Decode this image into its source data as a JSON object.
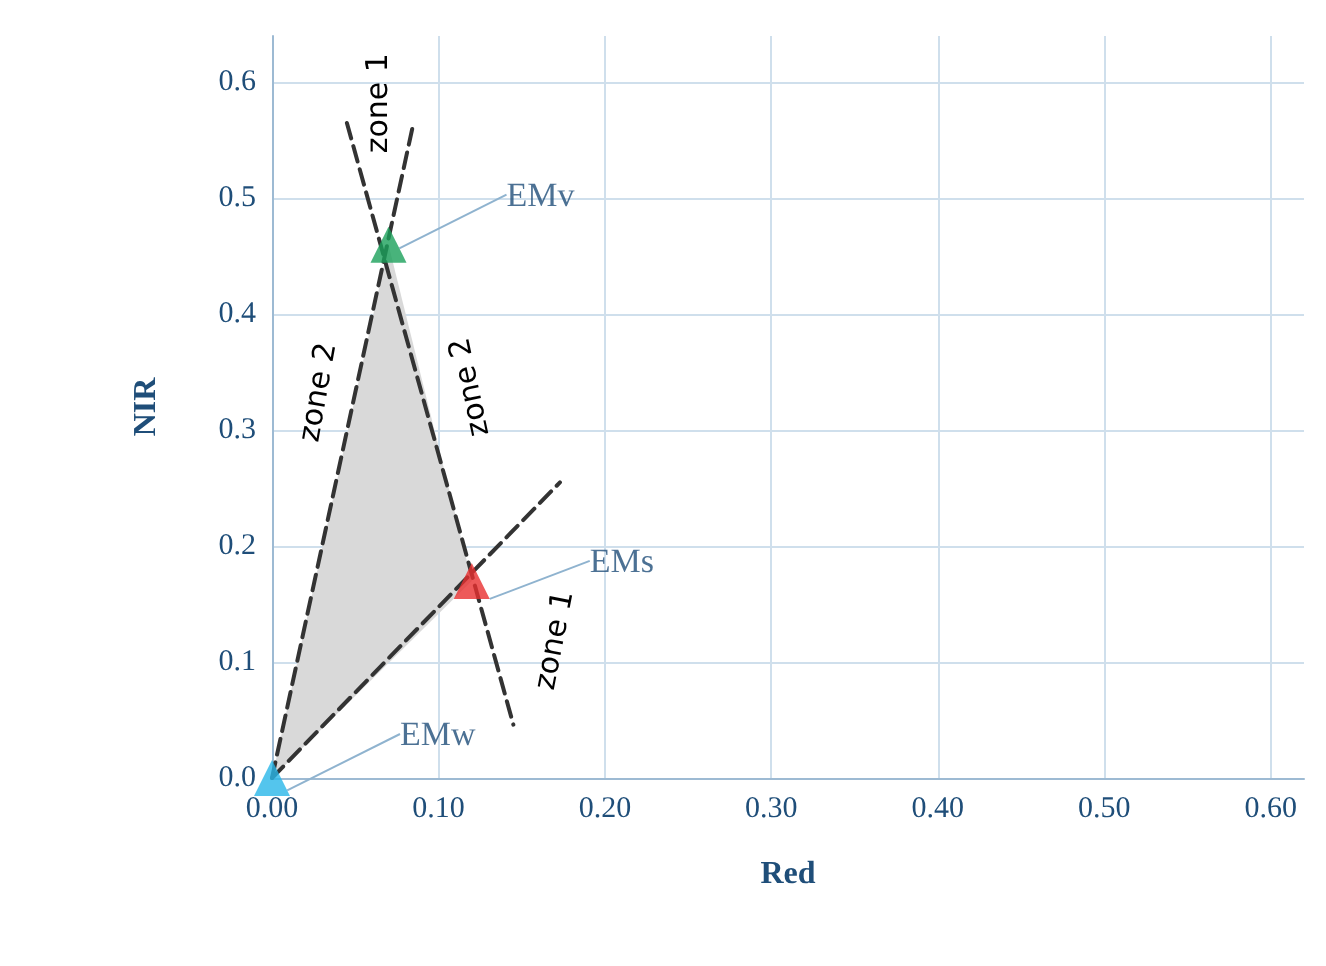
{
  "chart_data": {
    "type": "scatter",
    "xlabel": "Red",
    "ylabel": "NIR",
    "xlim": [
      0,
      0.62
    ],
    "ylim": [
      0,
      0.64
    ],
    "xticks": [
      {
        "value": 0,
        "label": "0.00"
      },
      {
        "value": 0.1,
        "label": "0.10"
      },
      {
        "value": 0.2,
        "label": "0.20"
      },
      {
        "value": 0.3,
        "label": "0.30"
      },
      {
        "value": 0.4,
        "label": "0.40"
      },
      {
        "value": 0.5,
        "label": "0.50"
      },
      {
        "value": 0.6,
        "label": "0.60"
      }
    ],
    "yticks": [
      {
        "value": 0,
        "label": "0.0"
      },
      {
        "value": 0.1,
        "label": "0.1"
      },
      {
        "value": 0.2,
        "label": "0.2"
      },
      {
        "value": 0.3,
        "label": "0.3"
      },
      {
        "value": 0.4,
        "label": "0.4"
      },
      {
        "value": 0.5,
        "label": "0.5"
      },
      {
        "value": 0.6,
        "label": "0.6"
      }
    ],
    "grid": true,
    "legend": false,
    "marker": "triangle",
    "series": [
      {
        "type": "area",
        "marker": "none",
        "color": "#d9d9d9",
        "x": [
          0,
          0.07,
          0.12
        ],
        "values": [
          0,
          0.46,
          0.17
        ]
      },
      {
        "type": "line",
        "line_style": "dashed",
        "marker": "none",
        "color": "#333333",
        "x": [
          0,
          0.085
        ],
        "values": [
          0,
          0.565
        ]
      },
      {
        "type": "line",
        "line_style": "dashed",
        "marker": "none",
        "color": "#333333",
        "x": [
          0.045,
          0.145
        ],
        "values": [
          0.565,
          0.046
        ]
      },
      {
        "type": "line",
        "line_style": "dashed",
        "marker": "none",
        "color": "#333333",
        "x": [
          0,
          0.173
        ],
        "values": [
          0,
          0.255
        ]
      },
      {
        "name": "EMv",
        "color": "#1aa05a",
        "x": [
          0.07
        ],
        "values": [
          0.46
        ]
      },
      {
        "name": "EMs",
        "color": "#e83030",
        "x": [
          0.12
        ],
        "values": [
          0.17
        ]
      },
      {
        "name": "EMw",
        "color": "#29b6e8",
        "x": [
          0
        ],
        "values": [
          0
        ]
      }
    ],
    "annotations": [
      "zone 1",
      "zone 2",
      "zone 2",
      "zone 1"
    ]
  }
}
